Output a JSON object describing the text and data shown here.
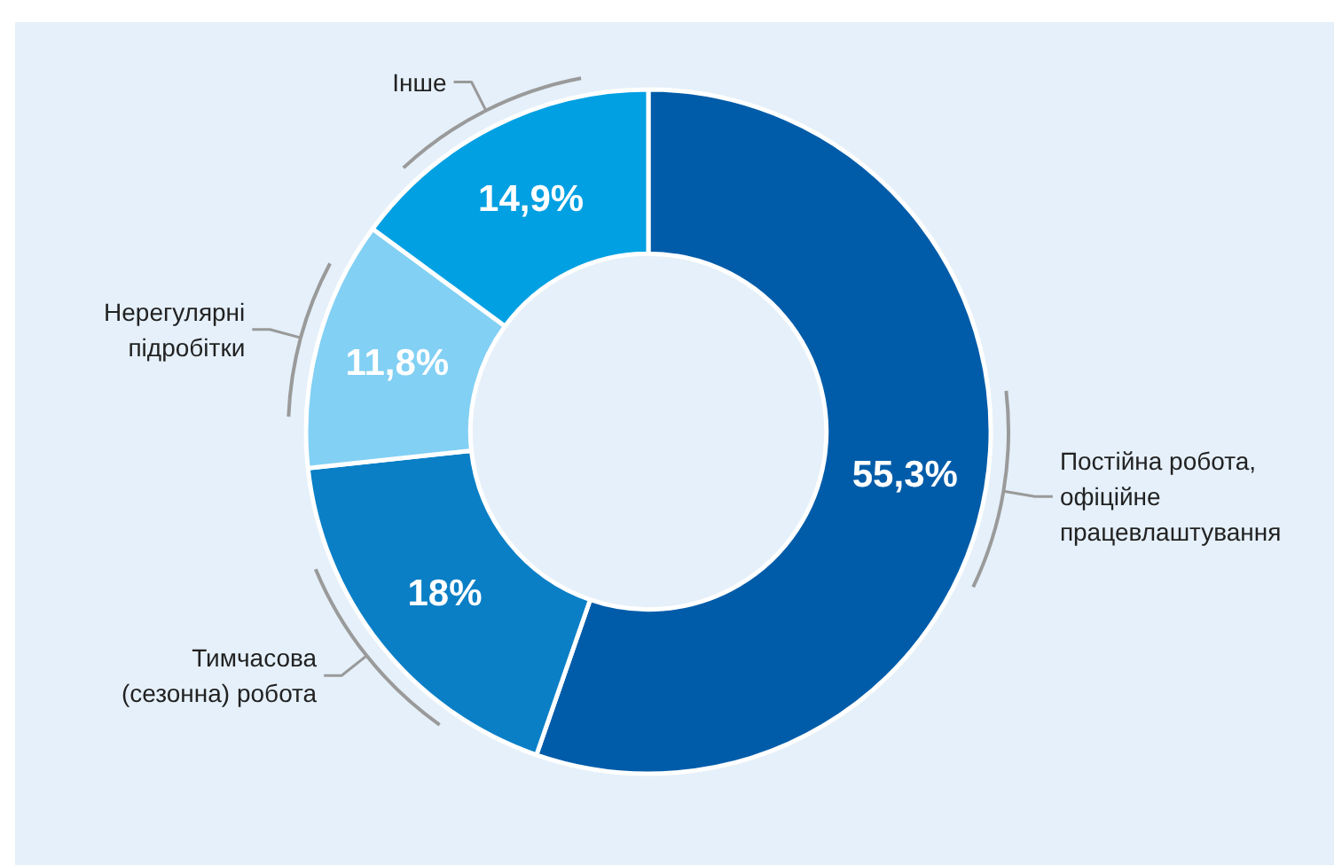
{
  "chart_data": {
    "type": "donut",
    "categories": [
      "Постійна робота, офіційне працевлаштування",
      "Тимчасова (сезонна) робота",
      "Нерегулярні підробітки",
      "Інше"
    ],
    "values": [
      55.3,
      18,
      11.8,
      14.9
    ],
    "colors": [
      "#005ca9",
      "#0a7fc6",
      "#82d0f4",
      "#00a0e2"
    ],
    "value_labels": [
      "55,3%",
      "18%",
      "11,8%",
      "14,9%"
    ]
  }
}
